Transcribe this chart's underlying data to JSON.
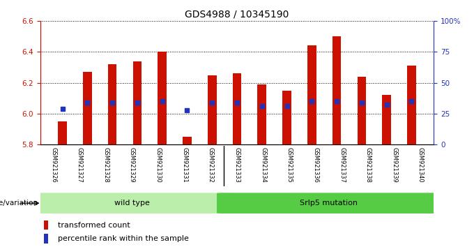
{
  "title": "GDS4988 / 10345190",
  "samples": [
    "GSM921326",
    "GSM921327",
    "GSM921328",
    "GSM921329",
    "GSM921330",
    "GSM921331",
    "GSM921332",
    "GSM921333",
    "GSM921334",
    "GSM921335",
    "GSM921336",
    "GSM921337",
    "GSM921338",
    "GSM921339",
    "GSM921340"
  ],
  "bar_values": [
    5.95,
    6.27,
    6.32,
    6.34,
    6.4,
    5.85,
    6.25,
    6.26,
    6.19,
    6.15,
    6.44,
    6.5,
    6.24,
    6.12,
    6.31
  ],
  "blue_dot_values": [
    6.03,
    6.07,
    6.07,
    6.07,
    6.08,
    6.02,
    6.07,
    6.07,
    6.05,
    6.05,
    6.08,
    6.08,
    6.07,
    6.06,
    6.08
  ],
  "bar_bottom": 5.8,
  "ylim_left": [
    5.8,
    6.6
  ],
  "ylim_right": [
    0,
    100
  ],
  "yticks_left": [
    5.8,
    6.0,
    6.2,
    6.4,
    6.6
  ],
  "yticks_right": [
    0,
    25,
    50,
    75,
    100
  ],
  "bar_color": "#cc1100",
  "dot_color": "#2233bb",
  "wild_type_count": 7,
  "wild_type_label": "wild type",
  "mutation_label": "Srlp5 mutation",
  "genotype_label": "genotype/variation",
  "legend_bar_label": "transformed count",
  "legend_dot_label": "percentile rank within the sample",
  "group_color_wt": "#bbeeaa",
  "group_color_mut": "#55cc44",
  "bg_color": "#c8c8c8",
  "title_fontsize": 10,
  "tick_fontsize": 7.5
}
